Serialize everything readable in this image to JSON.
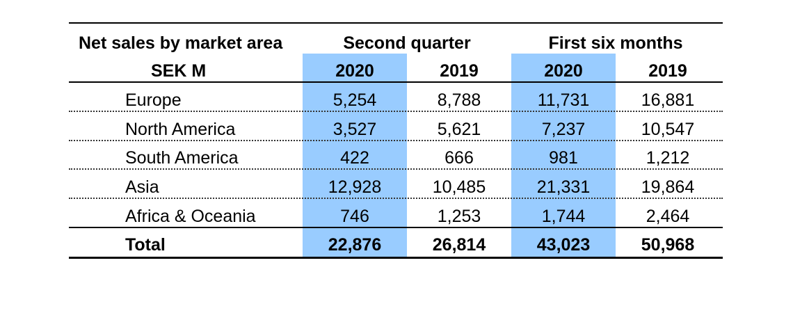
{
  "table": {
    "header": {
      "title_line1": "Net sales by market area",
      "title_line2": "SEK M",
      "group1": "Second quarter",
      "group2": "First six months",
      "years": [
        "2020",
        "2019",
        "2020",
        "2019"
      ]
    },
    "rows": [
      {
        "label": "Europe",
        "values": [
          "5,254",
          "8,788",
          "11,731",
          "16,881"
        ]
      },
      {
        "label": "North America",
        "values": [
          "3,527",
          "5,621",
          "7,237",
          "10,547"
        ]
      },
      {
        "label": "South America",
        "values": [
          "422",
          "666",
          "981",
          "1,212"
        ]
      },
      {
        "label": "Asia",
        "values": [
          "12,928",
          "10,485",
          "21,331",
          "19,864"
        ]
      },
      {
        "label": "Africa & Oceania",
        "values": [
          "746",
          "1,253",
          "1,744",
          "2,464"
        ]
      }
    ],
    "total": {
      "label": "Total",
      "values": [
        "22,876",
        "26,814",
        "43,023",
        "50,968"
      ]
    },
    "highlight_color": "#99ccff"
  }
}
